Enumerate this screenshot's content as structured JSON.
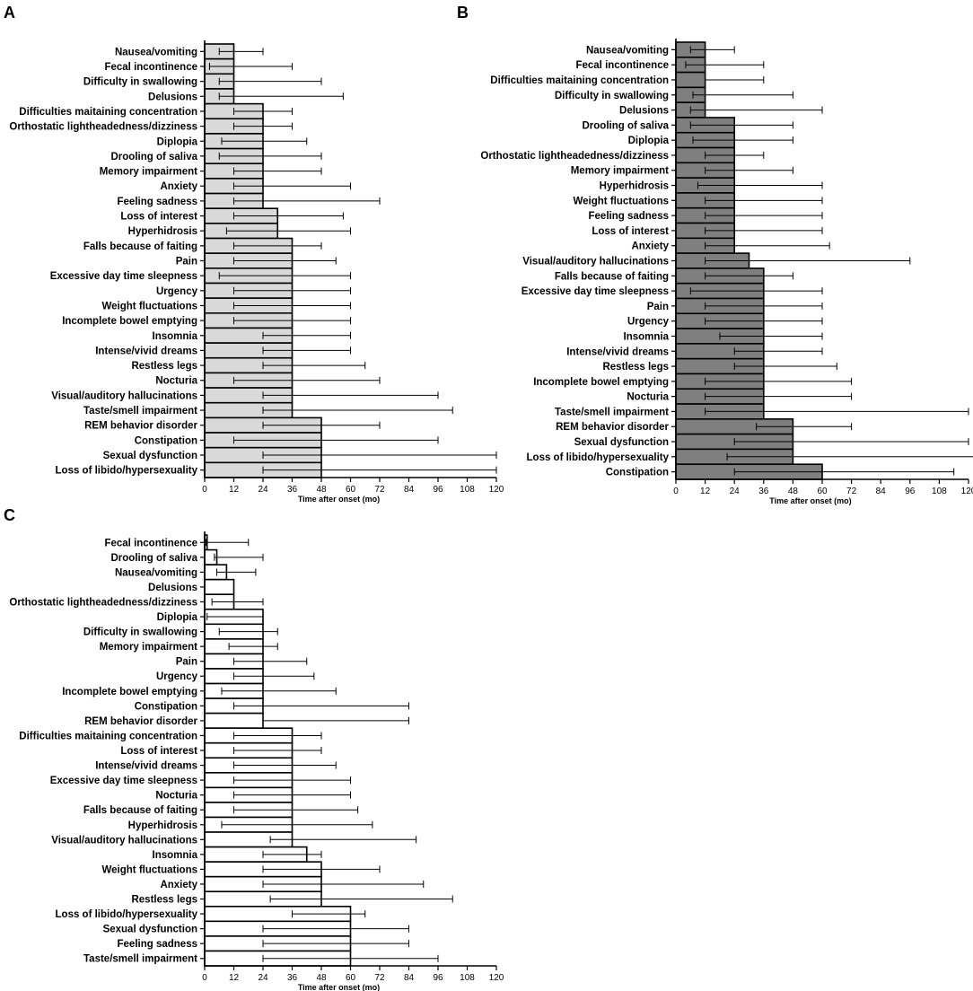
{
  "chart_data": [
    {
      "panel": "A",
      "type": "bar",
      "orientation": "horizontal",
      "bar_color": "#d9d9d9",
      "xlabel": "Time after onset  (mo)",
      "xlim": [
        0,
        120
      ],
      "xticks": [
        0,
        12,
        24,
        36,
        48,
        60,
        72,
        84,
        96,
        108,
        120
      ],
      "categories": [
        "Nausea/vomiting",
        "Fecal incontinence",
        "Difficulty in swallowing",
        "Delusions",
        "Difficulties maitaining concentration",
        "Orthostatic lightheadedness/dizziness",
        "Diplopia",
        "Drooling of saliva",
        "Memory impairment",
        "Anxiety",
        "Feeling sadness",
        "Loss of interest",
        "Hyperhidrosis",
        "Falls because of faiting",
        "Pain",
        "Excessive day time sleepness",
        "Urgency",
        "Weight fluctuations",
        "Incomplete bowel emptying",
        "Insomnia",
        "Intense/vivid dreams",
        "Restless legs",
        "Nocturia",
        "Visual/auditory hallucinations",
        "Taste/smell impairment",
        "REM behavior disorder",
        "Constipation",
        "Sexual dysfunction",
        "Loss of libido/hypersexuality"
      ],
      "values": [
        12,
        12,
        12,
        12,
        24,
        24,
        24,
        24,
        24,
        24,
        24,
        30,
        30,
        36,
        36,
        36,
        36,
        36,
        36,
        36,
        36,
        36,
        36,
        36,
        36,
        48,
        48,
        48,
        48
      ],
      "err_low": [
        6,
        2,
        6,
        6,
        12,
        12,
        7,
        6,
        12,
        12,
        12,
        12,
        9,
        12,
        12,
        6,
        12,
        12,
        12,
        24,
        24,
        24,
        12,
        24,
        24,
        24,
        12,
        24,
        24
      ],
      "err_high": [
        24,
        36,
        48,
        57,
        36,
        36,
        42,
        48,
        48,
        60,
        72,
        57,
        60,
        48,
        54,
        60,
        60,
        60,
        60,
        60,
        60,
        66,
        72,
        96,
        102,
        72,
        96,
        120,
        120
      ]
    },
    {
      "panel": "B",
      "type": "bar",
      "orientation": "horizontal",
      "bar_color": "#7f7f7f",
      "xlabel": "Time after onset  (mo)",
      "xlim": [
        0,
        120
      ],
      "xticks": [
        0,
        12,
        24,
        36,
        48,
        60,
        72,
        84,
        96,
        108,
        120
      ],
      "categories": [
        "Nausea/vomiting",
        "Fecal incontinence",
        "Difficulties maitaining concentration",
        "Difficulty in swallowing",
        "Delusions",
        "Drooling of saliva",
        "Diplopia",
        "Orthostatic lightheadedness/dizziness",
        "Memory impairment",
        "Hyperhidrosis",
        "Weight fluctuations",
        "Feeling sadness",
        "Loss of interest",
        "Anxiety",
        "Visual/auditory hallucinations",
        "Falls because of faiting",
        "Excessive day time sleepness",
        "Pain",
        "Urgency",
        "Insomnia",
        "Intense/vivid dreams",
        "Restless legs",
        "Incomplete bowel emptying",
        "Nocturia",
        "Taste/smell impairment",
        "REM behavior disorder",
        "Sexual dysfunction",
        "Loss of libido/hypersexuality",
        "Constipation"
      ],
      "values": [
        12,
        12,
        12,
        12,
        12,
        24,
        24,
        24,
        24,
        24,
        24,
        24,
        24,
        24,
        30,
        36,
        36,
        36,
        36,
        36,
        36,
        36,
        36,
        36,
        36,
        48,
        48,
        48,
        60
      ],
      "err_low": [
        6,
        4,
        12,
        7,
        6,
        6,
        7,
        12,
        12,
        9,
        12,
        12,
        12,
        12,
        12,
        12,
        6,
        12,
        12,
        18,
        24,
        24,
        12,
        12,
        12,
        33,
        24,
        21,
        24
      ],
      "err_high": [
        24,
        36,
        36,
        48,
        60,
        48,
        48,
        36,
        48,
        60,
        60,
        60,
        60,
        63,
        96,
        48,
        60,
        60,
        60,
        60,
        60,
        66,
        72,
        72,
        120,
        72,
        120,
        123,
        114
      ]
    },
    {
      "panel": "C",
      "type": "bar",
      "orientation": "horizontal",
      "bar_color": "#ffffff",
      "xlabel": "Time after onset  (mo)",
      "xlim": [
        0,
        120
      ],
      "xticks": [
        0,
        12,
        24,
        36,
        48,
        60,
        72,
        84,
        96,
        108,
        120
      ],
      "categories": [
        "Fecal incontinence",
        "Drooling of saliva",
        "Nausea/vomiting",
        "Delusions",
        "Orthostatic lightheadedness/dizziness",
        "Diplopia",
        "Difficulty in swallowing",
        "Memory impairment",
        "Pain",
        "Urgency",
        "Incomplete bowel emptying",
        "Constipation",
        "REM behavior disorder",
        "Difficulties maitaining concentration",
        "Loss of interest",
        "Intense/vivid dreams",
        "Excessive day time sleepness",
        "Nocturia",
        "Falls because of faiting",
        "Hyperhidrosis",
        "Visual/auditory hallucinations",
        "Insomnia",
        "Weight fluctuations",
        "Anxiety",
        "Restless legs",
        "Loss of libido/hypersexuality",
        "Sexual dysfunction",
        "Feeling sadness",
        "Taste/smell impairment"
      ],
      "values": [
        1,
        5,
        9,
        12,
        12,
        24,
        24,
        24,
        24,
        24,
        24,
        24,
        24,
        36,
        36,
        36,
        36,
        36,
        36,
        36,
        36,
        42,
        48,
        48,
        48,
        60,
        60,
        60,
        60
      ],
      "err_low": [
        0.5,
        4,
        5,
        12,
        3,
        1,
        6,
        10,
        12,
        12,
        7,
        12,
        24,
        12,
        12,
        12,
        12,
        12,
        12,
        7,
        27,
        24,
        24,
        24,
        27,
        36,
        24,
        24,
        24
      ],
      "err_high": [
        18,
        24,
        21,
        12,
        24,
        24,
        30,
        30,
        42,
        45,
        54,
        84,
        84,
        48,
        48,
        54,
        60,
        60,
        63,
        69,
        87,
        48,
        72,
        90,
        102,
        66,
        84,
        84,
        96
      ]
    }
  ]
}
